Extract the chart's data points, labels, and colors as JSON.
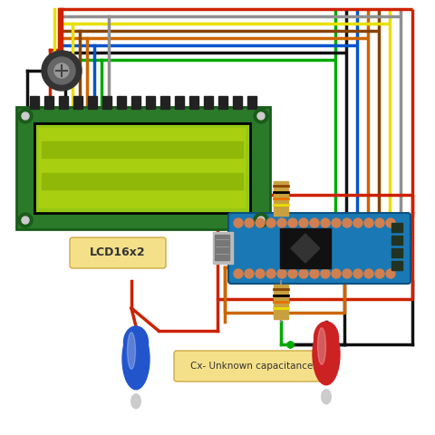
{
  "bg_color": "#ffffff",
  "lcd_label": "LCD16x2",
  "cx_label": "Cx- Unknown capacitance",
  "lcd_color": "#2a7a2a",
  "lcd_screen_color": "#96c814",
  "lcd_border_color": "#1a5c1a",
  "arduino_color": "#1a78b4",
  "red_wire": "#cc2200",
  "black_wire": "#111111",
  "green_wire": "#00aa00",
  "gray_wire": "#909090",
  "yellow_wire": "#e8e000",
  "brown_wire": "#884400",
  "orange_wire": "#e87000",
  "blue_wire": "#0055cc",
  "dark_orange_wire": "#cc6600"
}
